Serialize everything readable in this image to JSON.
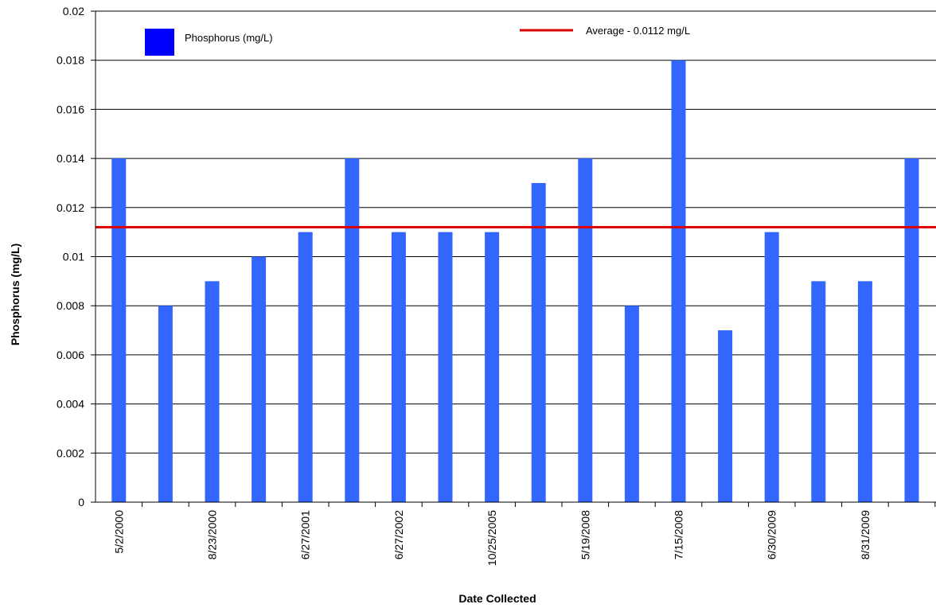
{
  "chart_data": {
    "type": "bar",
    "title": "",
    "xlabel": "Date Collected",
    "ylabel": "Phosphorus (mg/L)",
    "ylim": [
      0,
      0.02
    ],
    "yticks": [
      "0",
      "0.002",
      "0.004",
      "0.006",
      "0.008",
      "0.01",
      "0.012",
      "0.014",
      "0.016",
      "0.018",
      "0.02"
    ],
    "grid": true,
    "categories": [
      "5/2/2000",
      "",
      "8/23/2000",
      "",
      "6/27/2001",
      "",
      "6/27/2002",
      "",
      "10/25/2005",
      "",
      "5/19/2008",
      "",
      "7/15/2008",
      "",
      "6/30/2009",
      "",
      "8/31/2009",
      ""
    ],
    "series": [
      {
        "name": "Phosphorus (mg/L)",
        "color": "#3366ff",
        "values": [
          0.014,
          0.008,
          0.009,
          0.01,
          0.011,
          0.014,
          0.011,
          0.011,
          0.011,
          0.013,
          0.014,
          0.008,
          0.018,
          0.007,
          0.011,
          0.009,
          0.009,
          0.014
        ]
      }
    ],
    "reference_line": {
      "label": "Average - 0.0112 mg/L",
      "value": 0.0112,
      "color": "#dd0000"
    },
    "legend": {
      "placement": "top",
      "series_label": "Phosphorus (mg/L)",
      "series_swatch_color": "#0000ff",
      "average_label": "Average - 0.0112 mg/L"
    }
  }
}
